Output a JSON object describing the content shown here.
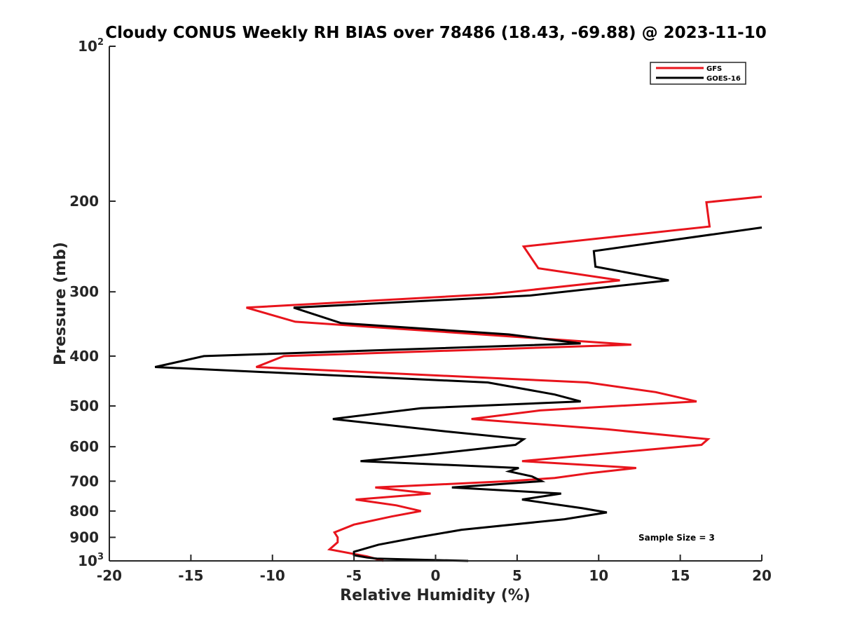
{
  "chart_data": {
    "type": "line",
    "title": "Cloudy CONUS Weekly RH BIAS over 78486 (18.43, -69.88) @ 2023-11-10",
    "xlabel": "Relative Humidity (%)",
    "ylabel": "Pressure (mb)",
    "xlim": [
      -20,
      20
    ],
    "ylim": [
      1000,
      100
    ],
    "y_scale": "log",
    "y_reversed": true,
    "grid": false,
    "legend_position": "top-right",
    "x_ticks": [
      "-20",
      "-15",
      "-10",
      "-5",
      "0",
      "5",
      "10",
      "15",
      "20"
    ],
    "y_ticks": [
      {
        "value": 100,
        "base": "10",
        "exp": "2"
      },
      {
        "value": 200,
        "label": "200"
      },
      {
        "value": 300,
        "label": "300"
      },
      {
        "value": 400,
        "label": "400"
      },
      {
        "value": 500,
        "label": "500"
      },
      {
        "value": 600,
        "label": "600"
      },
      {
        "value": 700,
        "label": "700"
      },
      {
        "value": 800,
        "label": "800"
      },
      {
        "value": 900,
        "label": "900"
      },
      {
        "value": 1000,
        "base": "10",
        "exp": "3"
      }
    ],
    "series": [
      {
        "name": "GFS",
        "color": "#e8141c",
        "points": [
          [
            20,
            196
          ],
          [
            16.6,
            201
          ],
          [
            16.8,
            224
          ],
          [
            5.4,
            245
          ],
          [
            6.3,
            270
          ],
          [
            11.3,
            285
          ],
          [
            3.5,
            303
          ],
          [
            -11.6,
            322
          ],
          [
            -8.6,
            343
          ],
          [
            12.0,
            380
          ],
          [
            -9.3,
            400
          ],
          [
            -11.0,
            420
          ],
          [
            9.3,
            450
          ],
          [
            13.5,
            470
          ],
          [
            16.0,
            490
          ],
          [
            6.4,
            510
          ],
          [
            2.2,
            530
          ],
          [
            10.5,
            555
          ],
          [
            16.7,
            580
          ],
          [
            16.3,
            595
          ],
          [
            5.3,
            640
          ],
          [
            12.3,
            660
          ],
          [
            9.5,
            675
          ],
          [
            7.3,
            690
          ],
          [
            4.5,
            700
          ],
          [
            -3.7,
            720
          ],
          [
            -0.3,
            740
          ],
          [
            -4.9,
            760
          ],
          [
            -2.4,
            780
          ],
          [
            -0.9,
            800
          ],
          [
            -2.7,
            820
          ],
          [
            -5.0,
            850
          ],
          [
            -6.2,
            880
          ],
          [
            -6.0,
            900
          ],
          [
            -6.0,
            920
          ],
          [
            -6.5,
            950
          ],
          [
            -4.2,
            980
          ],
          [
            -3.2,
            1000
          ]
        ]
      },
      {
        "name": "GOES-16",
        "color": "#000000",
        "points": [
          [
            20,
            225
          ],
          [
            9.7,
            250
          ],
          [
            9.8,
            268
          ],
          [
            14.3,
            285
          ],
          [
            5.8,
            305
          ],
          [
            -8.7,
            322
          ],
          [
            -5.8,
            345
          ],
          [
            4.5,
            363
          ],
          [
            8.9,
            378
          ],
          [
            -14.2,
            400
          ],
          [
            -17.2,
            420
          ],
          [
            3.2,
            450
          ],
          [
            7.3,
            475
          ],
          [
            8.9,
            490
          ],
          [
            -0.9,
            505
          ],
          [
            -6.3,
            530
          ],
          [
            0.6,
            560
          ],
          [
            5.4,
            580
          ],
          [
            4.9,
            595
          ],
          [
            -0.2,
            620
          ],
          [
            -4.6,
            640
          ],
          [
            5.1,
            660
          ],
          [
            4.5,
            670
          ],
          [
            5.9,
            685
          ],
          [
            6.5,
            700
          ],
          [
            1.0,
            720
          ],
          [
            7.7,
            740
          ],
          [
            5.3,
            760
          ],
          [
            9.0,
            790
          ],
          [
            10.5,
            805
          ],
          [
            7.9,
            830
          ],
          [
            1.6,
            870
          ],
          [
            -1.1,
            900
          ],
          [
            -3.5,
            930
          ],
          [
            -5.0,
            960
          ],
          [
            -5.0,
            975
          ],
          [
            -4.2,
            985
          ],
          [
            -3.6,
            990
          ],
          [
            2.0,
            1000
          ]
        ]
      }
    ],
    "annotation": "Sample Size = 3"
  }
}
